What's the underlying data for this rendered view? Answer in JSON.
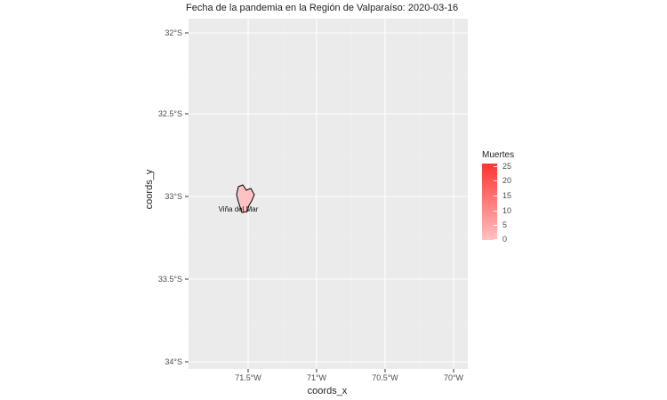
{
  "map": {
    "title": "Fecha de la pandemia en la Región de Valparaíso: 2020-03-16",
    "x_axis_title": "coords_x",
    "y_axis_title": "coords_y",
    "x_ticks": [
      "71.5°W",
      "71°W",
      "70.5°W",
      "70°W"
    ],
    "y_ticks": [
      "32°S",
      "32.5°S",
      "33°S",
      "33.5°S",
      "34°S"
    ],
    "region_label": "Viña del Mar",
    "colors": {
      "panel_background": "#ebebeb",
      "gridline": "#ffffff",
      "region_fill": "#ffc2c2",
      "region_stroke": "#000000",
      "scale_high": "#ff3333",
      "scale_low": "#ffc2c2"
    }
  },
  "legend": {
    "title": "Muertes",
    "ticks": [
      "25",
      "20",
      "15",
      "10",
      "5",
      "0"
    ],
    "values": [
      25,
      20,
      15,
      10,
      5,
      0
    ],
    "range": [
      0,
      26
    ]
  }
}
